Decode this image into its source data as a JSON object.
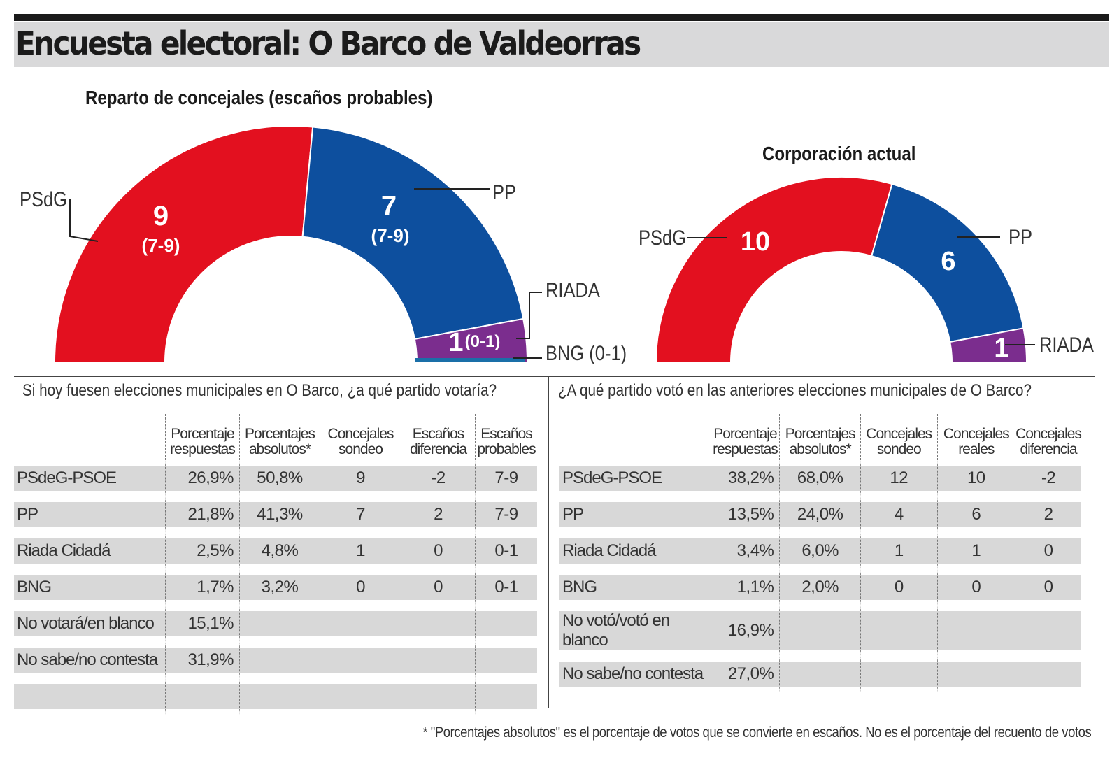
{
  "header": {
    "title": "Encuesta electoral: O Barco de Valdeorras"
  },
  "colors": {
    "psdeg": "#e3101f",
    "pp": "#0d4f9e",
    "riada": "#7b2d8e",
    "bng": "#1a6fa8",
    "row_bg": "#d8d8d8",
    "title_bg": "#d9d9da"
  },
  "chart_data": [
    {
      "type": "hemicycle",
      "title": "Reparto de concejales (escaños probables)",
      "total_seats": 17,
      "series": [
        {
          "name": "PSdG",
          "seats": 9,
          "range": "(7-9)",
          "color_key": "psdeg"
        },
        {
          "name": "PP",
          "seats": 7,
          "range": "(7-9)",
          "color_key": "pp"
        },
        {
          "name": "RIADA",
          "seats": 1,
          "range": "(0-1)",
          "color_key": "riada"
        },
        {
          "name": "BNG (0-1)",
          "seats": 0,
          "range": "",
          "color_key": "bng"
        }
      ]
    },
    {
      "type": "hemicycle",
      "title": "Corporación actual",
      "total_seats": 17,
      "series": [
        {
          "name": "PSdG",
          "seats": 10,
          "range": "",
          "color_key": "psdeg"
        },
        {
          "name": "PP",
          "seats": 6,
          "range": "",
          "color_key": "pp"
        },
        {
          "name": "RIADA",
          "seats": 1,
          "range": "",
          "color_key": "riada"
        }
      ]
    }
  ],
  "left_table": {
    "question": "Si hoy fuesen elecciones municipales en O Barco, ¿a qué partido votaría?",
    "headers": [
      [
        "Porcentaje",
        "respuestas"
      ],
      [
        "Porcentajes",
        "absolutos*"
      ],
      [
        "Concejales",
        "sondeo"
      ],
      [
        "Escaños",
        "diferencia"
      ],
      [
        "Escaños",
        "probables"
      ]
    ],
    "rows": [
      [
        "PSdeG-PSOE",
        "26,9%",
        "50,8%",
        "9",
        "-2",
        "7-9"
      ],
      [
        "PP",
        "21,8%",
        "41,3%",
        "7",
        "2",
        "7-9"
      ],
      [
        "Riada Cidadá",
        "2,5%",
        "4,8%",
        "1",
        "0",
        "0-1"
      ],
      [
        "BNG",
        "1,7%",
        "3,2%",
        "0",
        "0",
        "0-1"
      ],
      [
        "No votará/en blanco",
        "15,1%",
        "",
        "",
        "",
        ""
      ],
      [
        "No sabe/no contesta",
        "31,9%",
        "",
        "",
        "",
        ""
      ],
      [
        "",
        "",
        "",
        "",
        "",
        ""
      ]
    ]
  },
  "right_table": {
    "question": "¿A qué partido votó en las anteriores elecciones municipales de O Barco?",
    "headers": [
      [
        "Porcentaje",
        "respuestas"
      ],
      [
        "Porcentajes",
        "absolutos*"
      ],
      [
        "Concejales",
        "sondeo"
      ],
      [
        "Concejales",
        "reales"
      ],
      [
        "Concejales",
        "diferencia"
      ]
    ],
    "rows": [
      [
        "PSdeG-PSOE",
        "38,2%",
        "68,0%",
        "12",
        "10",
        "-2"
      ],
      [
        "PP",
        "13,5%",
        "24,0%",
        "4",
        "6",
        "2"
      ],
      [
        "Riada Cidadá",
        "3,4%",
        "6,0%",
        "1",
        "1",
        "0"
      ],
      [
        "BNG",
        "1,1%",
        "2,0%",
        "0",
        "0",
        "0"
      ],
      [
        "No votó/votó en blanco",
        "16,9%",
        "",
        "",
        "",
        ""
      ],
      [
        "No sabe/no contesta",
        "27,0%",
        "",
        "",
        "",
        ""
      ]
    ]
  },
  "footnote": "* \"Porcentajes absolutos\" es el porcentaje de votos que se convierte en escaños. No es el porcentaje del recuento de votos"
}
